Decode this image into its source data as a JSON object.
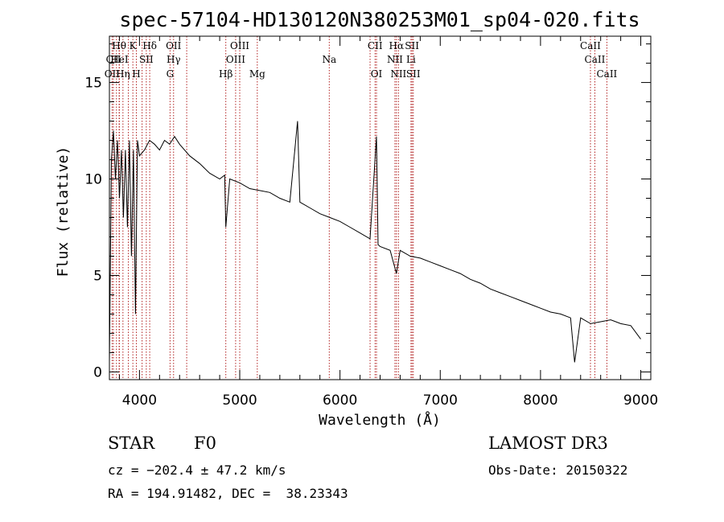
{
  "chart_data": {
    "type": "line",
    "title": "spec-57104-HD130120N380253M01_sp04-020.fits",
    "xlabel": "Wavelength (Å)",
    "ylabel": "Flux (relative)",
    "xlim": [
      3700,
      9100
    ],
    "ylim": [
      -0.4,
      17.4
    ],
    "xticks": [
      4000,
      5000,
      6000,
      7000,
      8000,
      9000
    ],
    "yticks": [
      0,
      5,
      10,
      15
    ],
    "grid": false,
    "series": [
      {
        "name": "spectrum",
        "x": [
          3700,
          3720,
          3740,
          3760,
          3780,
          3800,
          3820,
          3840,
          3860,
          3880,
          3900,
          3920,
          3940,
          3960,
          3980,
          4000,
          4050,
          4100,
          4150,
          4200,
          4250,
          4300,
          4350,
          4400,
          4500,
          4600,
          4700,
          4800,
          4850,
          4861,
          4900,
          5000,
          5100,
          5200,
          5300,
          5400,
          5500,
          5577,
          5600,
          5700,
          5800,
          5900,
          6000,
          6100,
          6200,
          6300,
          6364,
          6380,
          6400,
          6500,
          6563,
          6600,
          6700,
          6800,
          6900,
          7000,
          7100,
          7200,
          7300,
          7400,
          7500,
          7600,
          7700,
          7800,
          7900,
          8000,
          8100,
          8200,
          8300,
          8340,
          8400,
          8500,
          8600,
          8700,
          8800,
          8900,
          9000
        ],
        "y": [
          0.5,
          11,
          12.5,
          10,
          12,
          9,
          11.5,
          8,
          11.5,
          7.5,
          12,
          6,
          11.5,
          3,
          12,
          11.2,
          11.5,
          12,
          11.8,
          11.5,
          12,
          11.8,
          12.2,
          11.8,
          11.2,
          10.8,
          10.3,
          10,
          10.2,
          7.5,
          10,
          9.8,
          9.5,
          9.4,
          9.3,
          9.0,
          8.8,
          13,
          8.8,
          8.5,
          8.2,
          8.0,
          7.8,
          7.5,
          7.2,
          6.9,
          12.2,
          6.6,
          6.5,
          6.3,
          5.1,
          6.3,
          6.0,
          5.9,
          5.7,
          5.5,
          5.3,
          5.1,
          4.8,
          4.6,
          4.3,
          4.1,
          3.9,
          3.7,
          3.5,
          3.3,
          3.1,
          3.0,
          2.8,
          0.5,
          2.8,
          2.5,
          2.6,
          2.7,
          2.5,
          2.4,
          1.7
        ]
      }
    ],
    "lines": [
      {
        "label": "Hθ",
        "wave": 3797,
        "row": 0
      },
      {
        "label": "K",
        "wave": 3934,
        "row": 0
      },
      {
        "label": "Hδ",
        "wave": 4102,
        "row": 0
      },
      {
        "label": "OII",
        "wave": 4340,
        "row": 0
      },
      {
        "label": "OIII",
        "wave": 5000,
        "row": 0
      },
      {
        "label": "CII",
        "wave": 6350,
        "row": 0
      },
      {
        "label": "Hα",
        "wave": 6563,
        "row": 0
      },
      {
        "label": "SII",
        "wave": 6718,
        "row": 0
      },
      {
        "label": "CaII",
        "wave": 8498,
        "row": 0
      },
      {
        "label": "CII",
        "wave": 3740,
        "row": 1
      },
      {
        "label": "HeI",
        "wave": 3800,
        "row": 1
      },
      {
        "label": "SII",
        "wave": 4068,
        "row": 1
      },
      {
        "label": "Hγ",
        "wave": 4340,
        "row": 1
      },
      {
        "label": "OIII",
        "wave": 4959,
        "row": 1
      },
      {
        "label": "Na",
        "wave": 5893,
        "row": 1
      },
      {
        "label": "NII",
        "wave": 6548,
        "row": 1
      },
      {
        "label": "Li",
        "wave": 6708,
        "row": 1
      },
      {
        "label": "CaII",
        "wave": 8542,
        "row": 1
      },
      {
        "label": "OII",
        "wave": 3727,
        "row": 2
      },
      {
        "label": "Hη",
        "wave": 3835,
        "row": 2
      },
      {
        "label": "H",
        "wave": 3969,
        "row": 2
      },
      {
        "label": "G",
        "wave": 4305,
        "row": 2
      },
      {
        "label": "Hβ",
        "wave": 4861,
        "row": 2
      },
      {
        "label": "Mg",
        "wave": 5175,
        "row": 2
      },
      {
        "label": "OI",
        "wave": 6364,
        "row": 2
      },
      {
        "label": "NII",
        "wave": 6583,
        "row": 2
      },
      {
        "label": "SII",
        "wave": 6731,
        "row": 2
      },
      {
        "label": "CaII",
        "wave": 8662,
        "row": 2
      }
    ],
    "extra_line_markers": [
      3770,
      3889,
      4026,
      4471,
      6300,
      8542
    ]
  },
  "info": {
    "class": "STAR",
    "subclass": "F0",
    "survey": "LAMOST DR3",
    "cz": "cz = −202.4 ± 47.2 km/s",
    "obs_date": "Obs-Date: 20150322",
    "radec": "RA = 194.91482, DEC =  38.23343"
  }
}
